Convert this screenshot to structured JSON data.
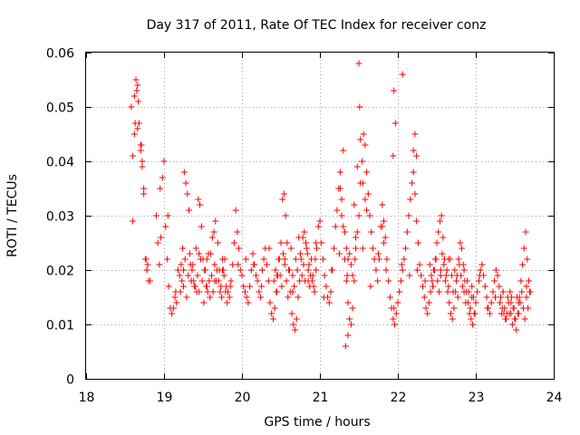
{
  "chart_data": {
    "type": "scatter",
    "title": "Day 317 of 2011, Rate Of TEC Index for receiver conz",
    "xlabel": "GPS time / hours",
    "ylabel": "ROTI / TECUs",
    "xlim": [
      18,
      24
    ],
    "ylim": [
      0,
      0.06
    ],
    "xticks": [
      "18",
      "19",
      "20",
      "21",
      "22",
      "23",
      "24"
    ],
    "yticks": [
      "0",
      "0.01",
      "0.02",
      "0.03",
      "0.04",
      "0.05",
      "0.06"
    ],
    "grid": true,
    "marker": "+",
    "color": "#ff0000",
    "series": [
      {
        "name": "conz",
        "x": [
          18.58,
          18.6,
          18.62,
          18.63,
          18.65,
          18.66,
          18.67,
          18.68,
          18.7,
          18.71,
          18.72,
          18.74,
          18.76,
          18.78,
          18.8,
          18.62,
          18.64,
          18.6,
          18.66,
          18.68,
          18.7,
          18.72,
          18.74,
          18.77,
          18.79,
          18.82,
          18.9,
          18.92,
          18.94,
          18.96,
          18.98,
          19.0,
          19.02,
          19.04,
          19.06,
          19.08,
          19.1,
          19.12,
          19.14,
          19.16,
          19.18,
          19.2,
          19.22,
          19.24,
          19.26,
          19.28,
          19.3,
          19.32,
          19.34,
          19.36,
          19.38,
          19.4,
          19.42,
          19.44,
          19.46,
          19.48,
          19.5,
          19.52,
          19.54,
          19.56,
          19.58,
          19.6,
          19.62,
          19.64,
          19.66,
          19.68,
          19.7,
          19.72,
          19.74,
          19.76,
          19.78,
          19.8,
          19.82,
          19.84,
          19.86,
          19.88,
          19.9,
          19.92,
          19.94,
          19.96,
          19.98,
          20.0,
          20.02,
          20.04,
          20.06,
          20.08,
          20.1,
          20.12,
          20.14,
          20.16,
          20.18,
          20.2,
          20.22,
          20.24,
          20.26,
          20.28,
          20.3,
          20.32,
          20.34,
          20.36,
          20.38,
          20.4,
          20.42,
          20.44,
          20.46,
          20.48,
          20.5,
          20.52,
          20.54,
          20.56,
          20.58,
          20.6,
          20.62,
          20.64,
          20.66,
          20.68,
          20.7,
          20.72,
          20.74,
          20.76,
          20.78,
          20.8,
          20.82,
          20.84,
          20.86,
          20.88,
          20.9,
          20.92,
          20.94,
          20.96,
          20.98,
          21.0,
          21.02,
          21.04,
          21.06,
          21.08,
          21.1,
          21.12,
          21.14,
          21.16,
          21.18,
          21.2,
          21.22,
          21.24,
          21.26,
          21.28,
          21.3,
          21.32,
          21.34,
          21.36,
          21.38,
          21.4,
          21.42,
          21.44,
          21.46,
          21.48,
          21.5,
          21.52,
          21.54,
          21.56,
          21.58,
          21.6,
          21.62,
          21.64,
          21.66,
          21.68,
          21.7,
          21.72,
          21.74,
          21.76,
          21.78,
          21.8,
          21.82,
          21.84,
          21.86,
          21.88,
          21.9,
          21.92,
          21.94,
          21.96,
          21.98,
          22.0,
          22.02,
          22.04,
          22.06,
          22.08,
          22.1,
          22.12,
          22.14,
          22.16,
          22.18,
          22.2,
          22.22,
          22.24,
          22.26,
          22.28,
          22.3,
          22.32,
          22.34,
          22.36,
          22.38,
          22.4,
          22.42,
          22.44,
          22.46,
          22.48,
          22.5,
          22.52,
          22.54,
          22.56,
          22.58,
          22.6,
          22.62,
          22.64,
          22.66,
          22.68,
          22.7,
          22.72,
          22.74,
          22.76,
          22.78,
          22.8,
          22.82,
          22.84,
          22.86,
          22.88,
          22.9,
          22.92,
          22.94,
          22.96,
          22.98,
          23.0,
          23.02,
          23.04,
          23.06,
          23.08,
          23.1,
          23.12,
          23.14,
          23.16,
          23.18,
          23.2,
          23.22,
          23.24,
          23.26,
          23.28,
          23.3,
          23.32,
          23.34,
          23.36,
          23.38,
          23.4,
          23.42,
          23.44,
          23.46,
          23.48,
          23.5,
          23.52,
          23.54,
          23.56,
          23.58,
          23.6,
          23.62,
          23.64,
          23.66,
          23.68,
          23.7,
          18.95,
          19.05,
          19.15,
          19.25,
          19.35,
          19.45,
          19.55,
          19.65,
          19.75,
          19.85,
          19.95,
          20.05,
          20.15,
          20.25,
          20.35,
          20.45,
          20.55,
          20.65,
          20.75,
          20.85,
          20.95,
          21.05,
          21.15,
          21.25,
          21.35,
          21.45,
          21.55,
          21.65,
          21.75,
          21.85,
          21.95,
          22.05,
          22.15,
          22.25,
          22.35,
          22.45,
          22.55,
          22.65,
          22.75,
          22.85,
          22.95,
          23.05,
          23.15,
          23.25,
          23.35,
          23.45,
          23.55,
          23.65,
          21.5,
          21.51,
          22.06,
          21.95,
          21.97,
          21.94,
          22.2,
          22.22,
          22.24,
          21.48,
          21.52,
          21.8,
          21.82,
          21.55,
          21.58,
          21.6,
          21.3,
          21.32,
          21.34,
          21.36,
          21.28,
          21.26,
          21.4,
          21.42,
          21.44,
          21.46,
          21.38,
          21.36,
          21.33,
          19.21,
          19.23,
          19.25,
          19.27,
          19.29,
          19.31,
          19.33,
          19.35,
          19.37,
          19.39,
          19.41,
          19.43,
          19.45,
          19.47,
          19.49,
          19.51,
          19.53,
          19.55,
          19.57,
          19.59,
          19.61,
          19.63,
          19.65,
          19.67,
          19.69,
          19.71,
          19.73,
          19.75,
          19.77,
          19.79,
          19.81,
          20.41,
          20.43,
          20.45,
          20.47,
          20.49,
          20.51,
          20.53,
          20.55,
          20.57,
          20.59,
          20.61,
          20.63,
          20.65,
          20.67,
          20.69,
          20.71,
          20.73,
          20.75,
          20.77,
          20.79,
          20.81,
          20.83,
          20.85,
          20.87,
          20.89,
          20.91,
          20.93,
          20.95,
          22.41,
          22.43,
          22.45,
          22.47,
          22.49,
          22.51,
          22.53,
          22.55,
          22.57,
          22.59,
          22.61,
          22.63,
          22.65,
          22.67,
          22.69,
          22.71,
          22.73,
          22.75,
          22.77,
          22.79,
          22.81,
          22.83,
          22.85,
          22.87,
          22.89,
          22.91,
          22.93,
          22.95,
          22.97,
          22.99,
          23.31,
          23.33,
          23.35,
          23.37,
          23.39,
          23.41,
          23.43,
          23.45,
          23.47,
          23.49,
          23.51,
          23.53,
          23.55,
          23.57,
          23.59,
          23.61,
          23.63,
          23.65,
          23.67,
          23.69
        ],
        "y": [
          0.05,
          0.041,
          0.045,
          0.047,
          0.053,
          0.054,
          0.051,
          0.047,
          0.042,
          0.043,
          0.039,
          0.034,
          0.022,
          0.02,
          0.018,
          0.052,
          0.055,
          0.029,
          0.046,
          0.047,
          0.043,
          0.04,
          0.035,
          0.022,
          0.021,
          0.018,
          0.03,
          0.025,
          0.021,
          0.026,
          0.037,
          0.04,
          0.028,
          0.022,
          0.017,
          0.013,
          0.012,
          0.013,
          0.015,
          0.014,
          0.02,
          0.019,
          0.021,
          0.024,
          0.038,
          0.036,
          0.034,
          0.031,
          0.021,
          0.02,
          0.018,
          0.017,
          0.016,
          0.033,
          0.032,
          0.028,
          0.022,
          0.02,
          0.017,
          0.016,
          0.018,
          0.023,
          0.026,
          0.027,
          0.029,
          0.02,
          0.018,
          0.016,
          0.015,
          0.02,
          0.022,
          0.017,
          0.016,
          0.015,
          0.018,
          0.021,
          0.025,
          0.031,
          0.027,
          0.024,
          0.02,
          0.019,
          0.017,
          0.016,
          0.015,
          0.014,
          0.017,
          0.02,
          0.023,
          0.021,
          0.019,
          0.018,
          0.016,
          0.015,
          0.02,
          0.022,
          0.024,
          0.021,
          0.018,
          0.014,
          0.012,
          0.011,
          0.013,
          0.016,
          0.019,
          0.022,
          0.025,
          0.033,
          0.034,
          0.03,
          0.025,
          0.02,
          0.016,
          0.012,
          0.01,
          0.009,
          0.011,
          0.015,
          0.018,
          0.022,
          0.026,
          0.027,
          0.025,
          0.023,
          0.021,
          0.019,
          0.018,
          0.017,
          0.022,
          0.024,
          0.028,
          0.029,
          0.025,
          0.022,
          0.019,
          0.017,
          0.015,
          0.014,
          0.016,
          0.02,
          0.024,
          0.028,
          0.031,
          0.035,
          0.038,
          0.033,
          0.028,
          0.022,
          0.018,
          0.014,
          0.011,
          0.01,
          0.013,
          0.018,
          0.024,
          0.027,
          0.03,
          0.036,
          0.04,
          0.045,
          0.043,
          0.038,
          0.034,
          0.03,
          0.027,
          0.024,
          0.022,
          0.02,
          0.018,
          0.022,
          0.028,
          0.032,
          0.029,
          0.026,
          0.022,
          0.018,
          0.015,
          0.013,
          0.011,
          0.01,
          0.012,
          0.014,
          0.016,
          0.018,
          0.02,
          0.022,
          0.024,
          0.027,
          0.03,
          0.033,
          0.036,
          0.038,
          0.034,
          0.029,
          0.025,
          0.021,
          0.019,
          0.017,
          0.015,
          0.013,
          0.012,
          0.014,
          0.016,
          0.018,
          0.02,
          0.022,
          0.025,
          0.027,
          0.029,
          0.03,
          0.026,
          0.022,
          0.019,
          0.016,
          0.014,
          0.012,
          0.011,
          0.013,
          0.016,
          0.019,
          0.022,
          0.025,
          0.024,
          0.021,
          0.018,
          0.016,
          0.014,
          0.012,
          0.011,
          0.01,
          0.012,
          0.014,
          0.016,
          0.018,
          0.02,
          0.021,
          0.019,
          0.017,
          0.015,
          0.013,
          0.012,
          0.014,
          0.016,
          0.018,
          0.02,
          0.019,
          0.017,
          0.015,
          0.013,
          0.012,
          0.011,
          0.012,
          0.014,
          0.016,
          0.015,
          0.013,
          0.011,
          0.009,
          0.012,
          0.015,
          0.018,
          0.021,
          0.024,
          0.027,
          0.022,
          0.018,
          0.016,
          0.035,
          0.03,
          0.016,
          0.017,
          0.018,
          0.023,
          0.022,
          0.018,
          0.02,
          0.017,
          0.021,
          0.022,
          0.021,
          0.017,
          0.024,
          0.019,
          0.022,
          0.016,
          0.023,
          0.018,
          0.025,
          0.015,
          0.02,
          0.023,
          0.019,
          0.022,
          0.024,
          0.017,
          0.023,
          0.02,
          0.013,
          0.021,
          0.019,
          0.02,
          0.018,
          0.017,
          0.02,
          0.022,
          0.018,
          0.016,
          0.015,
          0.019,
          0.013,
          0.015,
          0.016,
          0.012,
          0.014,
          0.017,
          0.058,
          0.05,
          0.056,
          0.053,
          0.047,
          0.041,
          0.042,
          0.045,
          0.041,
          0.039,
          0.044,
          0.028,
          0.025,
          0.036,
          0.033,
          0.031,
          0.042,
          0.027,
          0.024,
          0.022,
          0.03,
          0.035,
          0.021,
          0.019,
          0.032,
          0.026,
          0.023,
          0.008,
          0.006,
          0.016,
          0.018,
          0.02,
          0.022,
          0.015,
          0.019,
          0.023,
          0.018,
          0.021,
          0.017,
          0.024,
          0.019,
          0.016,
          0.022,
          0.018,
          0.014,
          0.02,
          0.017,
          0.023,
          0.015,
          0.019,
          0.016,
          0.021,
          0.018,
          0.025,
          0.02,
          0.017,
          0.022,
          0.019,
          0.016,
          0.014,
          0.018,
          0.02,
          0.016,
          0.022,
          0.019,
          0.017,
          0.023,
          0.021,
          0.018,
          0.015,
          0.02,
          0.024,
          0.019,
          0.017,
          0.022,
          0.02,
          0.026,
          0.023,
          0.019,
          0.021,
          0.018,
          0.024,
          0.02,
          0.017,
          0.022,
          0.019,
          0.016,
          0.02,
          0.021,
          0.019,
          0.017,
          0.02,
          0.022,
          0.018,
          0.016,
          0.019,
          0.023,
          0.021,
          0.018,
          0.02,
          0.017,
          0.022,
          0.019,
          0.016,
          0.02,
          0.018,
          0.015,
          0.021,
          0.019,
          0.017,
          0.02,
          0.014,
          0.018,
          0.016,
          0.013,
          0.017,
          0.015,
          0.012,
          0.014,
          0.012,
          0.016,
          0.013,
          0.011,
          0.015,
          0.012,
          0.014,
          0.01,
          0.013,
          0.011,
          0.015,
          0.012,
          0.014,
          0.016,
          0.013,
          0.011,
          0.015,
          0.013,
          0.016
        ]
      }
    ]
  }
}
